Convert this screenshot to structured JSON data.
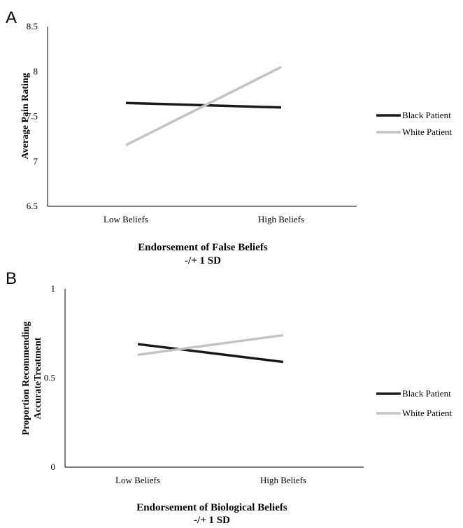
{
  "chart_data": [
    {
      "type": "line",
      "panel_label": "A",
      "categories": [
        "Low Beliefs",
        "High Beliefs"
      ],
      "series": [
        {
          "name": "Black Patient",
          "color": "#1a1a1a",
          "values": [
            7.65,
            7.6
          ]
        },
        {
          "name": "White Patient",
          "color": "#c3c3c3",
          "values": [
            7.18,
            8.05
          ]
        }
      ],
      "ylabel": "Average Pain Rating",
      "xlabel_lines": [
        "Endorsement of False Beliefs",
        "-/+ 1 SD"
      ],
      "ylim": [
        6.5,
        8.5
      ],
      "yticks": [
        "6.5",
        "7",
        "7.5",
        "8",
        "8.5"
      ],
      "ytick_values": [
        6.5,
        7,
        7.5,
        8,
        8.5
      ],
      "legend_position": "right",
      "grid": false
    },
    {
      "type": "line",
      "panel_label": "B",
      "categories": [
        "Low Beliefs",
        "High Beliefs"
      ],
      "series": [
        {
          "name": "Black Patient",
          "color": "#1a1a1a",
          "values": [
            0.69,
            0.59
          ]
        },
        {
          "name": "White Patient",
          "color": "#c3c3c3",
          "values": [
            0.63,
            0.74
          ]
        }
      ],
      "ylabel_lines": [
        "Proportion Recommending",
        "AccurateTreatment"
      ],
      "xlabel_lines": [
        "Endorsement of Biological Beliefs",
        "-/+ 1 SD"
      ],
      "ylim": [
        0,
        1
      ],
      "yticks": [
        "0",
        "0.5",
        "1"
      ],
      "ytick_values": [
        0,
        0.5,
        1
      ],
      "legend_position": "right",
      "grid": false
    }
  ]
}
